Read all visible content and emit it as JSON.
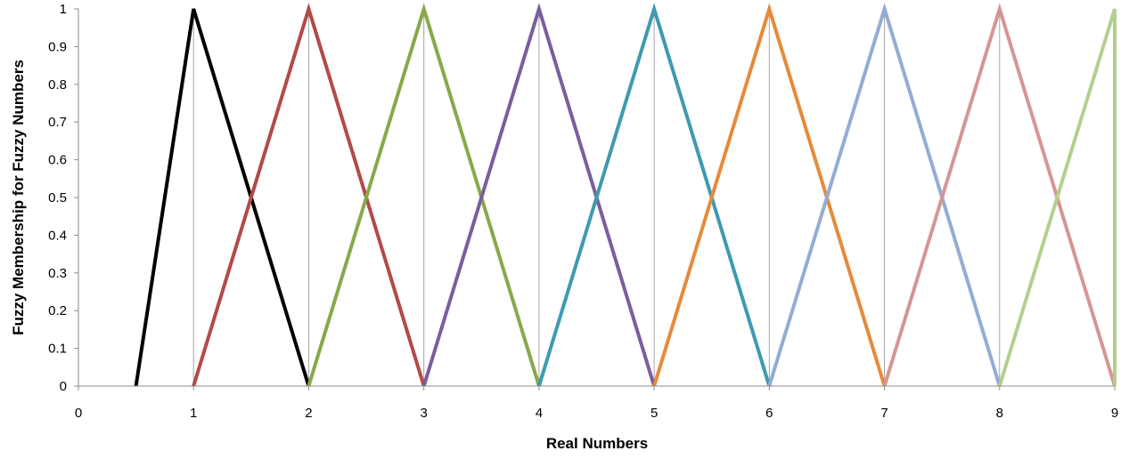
{
  "chart_data": {
    "type": "line",
    "title": "",
    "xlabel": "Real Numbers",
    "ylabel": "Fuzzy Membership for Fuzzy Numbers",
    "xlim": [
      0,
      9
    ],
    "ylim": [
      0,
      1
    ],
    "x_ticks": [
      "0",
      "1",
      "2",
      "3",
      "4",
      "5",
      "6",
      "7",
      "8",
      "9"
    ],
    "y_ticks": [
      "0",
      "0.1",
      "0.2",
      "0.3",
      "0.4",
      "0.5",
      "0.6",
      "0.7",
      "0.8",
      "0.9",
      "1"
    ],
    "grid": "vertical",
    "legend": "none",
    "series": [
      {
        "color": "#000000",
        "x": [
          0.5,
          1,
          2
        ],
        "y": [
          0,
          1,
          0
        ]
      },
      {
        "color": "#b24a46",
        "x": [
          1,
          2,
          3
        ],
        "y": [
          0,
          1,
          0
        ]
      },
      {
        "color": "#87a94a",
        "x": [
          2,
          3,
          4
        ],
        "y": [
          0,
          1,
          0
        ]
      },
      {
        "color": "#7a5e9c",
        "x": [
          3,
          4,
          5
        ],
        "y": [
          0,
          1,
          0
        ]
      },
      {
        "color": "#3f9aaf",
        "x": [
          4,
          5,
          6
        ],
        "y": [
          0,
          1,
          0
        ]
      },
      {
        "color": "#e68a3c",
        "x": [
          5,
          6,
          7
        ],
        "y": [
          0,
          1,
          0
        ]
      },
      {
        "color": "#94acd4",
        "x": [
          6,
          7,
          8
        ],
        "y": [
          0,
          1,
          0
        ]
      },
      {
        "color": "#d49694",
        "x": [
          7,
          8,
          9
        ],
        "y": [
          0,
          1,
          0
        ]
      },
      {
        "color": "#b3cf8e",
        "x": [
          8,
          9,
          9
        ],
        "y": [
          0,
          1,
          0
        ]
      }
    ]
  }
}
